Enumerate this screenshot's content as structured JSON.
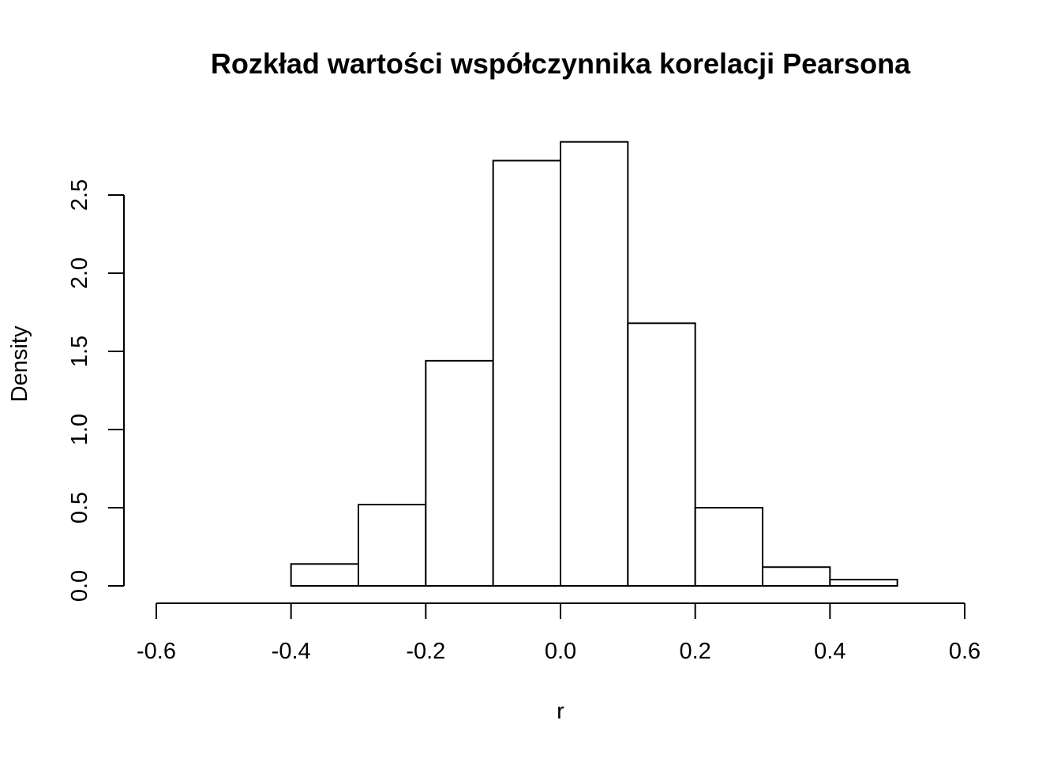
{
  "chart_data": {
    "type": "bar",
    "title": "Rozkład wartości współczynnika korelacji Pearsona",
    "xlabel": "r",
    "ylabel": "Density",
    "xlim": [
      -0.6,
      0.6
    ],
    "ylim": [
      0,
      2.5
    ],
    "x_ticks": [
      "-0.6",
      "-0.4",
      "-0.2",
      "0.0",
      "0.2",
      "0.4",
      "0.6"
    ],
    "y_ticks": [
      "0.0",
      "0.5",
      "1.0",
      "1.5",
      "2.0",
      "2.5"
    ],
    "bins": [
      {
        "from": -0.4,
        "to": -0.3,
        "density": 0.14
      },
      {
        "from": -0.3,
        "to": -0.2,
        "density": 0.52
      },
      {
        "from": -0.2,
        "to": -0.1,
        "density": 1.44
      },
      {
        "from": -0.1,
        "to": 0.0,
        "density": 2.72
      },
      {
        "from": 0.0,
        "to": 0.1,
        "density": 2.84
      },
      {
        "from": 0.1,
        "to": 0.2,
        "density": 1.68
      },
      {
        "from": 0.2,
        "to": 0.3,
        "density": 0.5
      },
      {
        "from": 0.3,
        "to": 0.4,
        "density": 0.12
      },
      {
        "from": 0.4,
        "to": 0.5,
        "density": 0.04
      }
    ],
    "grid": false,
    "colors": {
      "bar_fill": "#ffffff",
      "bar_stroke": "#000000"
    }
  }
}
